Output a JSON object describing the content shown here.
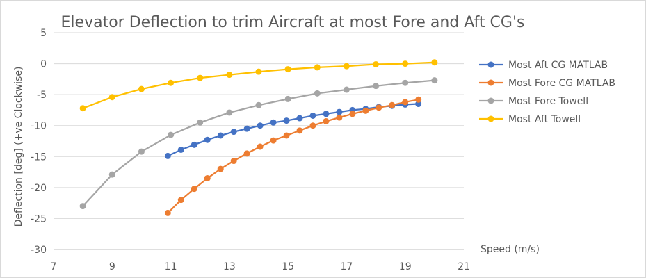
{
  "chart_data": {
    "type": "scatter",
    "title": "Elevator Deflection to trim Aircraft at most Fore and Aft CG's",
    "xlabel": "Speed (m/s)",
    "ylabel": "Deflection [deg] (+ve Clockwise)",
    "xlim": [
      7,
      21
    ],
    "ylim": [
      -30,
      5
    ],
    "xticks": [
      7,
      9,
      11,
      13,
      15,
      17,
      19,
      21
    ],
    "yticks": [
      5,
      0,
      -5,
      -10,
      -15,
      -20,
      -25,
      -30
    ],
    "grid": "horizontal",
    "legend_position": "right",
    "series": [
      {
        "name": "Most Aft CG MATLAB",
        "color": "#4472C4",
        "x": [
          10.9,
          11.35,
          11.8,
          12.25,
          12.7,
          13.15,
          13.6,
          14.05,
          14.5,
          14.95,
          15.4,
          15.85,
          16.3,
          16.75,
          17.2,
          17.65,
          18.1,
          18.55,
          19.0,
          19.45
        ],
        "y": [
          -14.9,
          -13.9,
          -13.1,
          -12.3,
          -11.6,
          -11.0,
          -10.5,
          -10.0,
          -9.5,
          -9.2,
          -8.8,
          -8.4,
          -8.1,
          -7.8,
          -7.5,
          -7.3,
          -7.0,
          -6.8,
          -6.6,
          -6.5
        ]
      },
      {
        "name": "Most Fore CG MATLAB",
        "color": "#ED7D31",
        "x": [
          10.9,
          11.35,
          11.8,
          12.25,
          12.7,
          13.15,
          13.6,
          14.05,
          14.5,
          14.95,
          15.4,
          15.85,
          16.3,
          16.75,
          17.2,
          17.65,
          18.1,
          18.55,
          19.0,
          19.45
        ],
        "y": [
          -24.1,
          -22.0,
          -20.2,
          -18.5,
          -17.0,
          -15.7,
          -14.5,
          -13.4,
          -12.4,
          -11.6,
          -10.8,
          -10.0,
          -9.3,
          -8.7,
          -8.1,
          -7.6,
          -7.1,
          -6.7,
          -6.2,
          -5.8
        ]
      },
      {
        "name": "Most Fore Towell",
        "color": "#A5A5A5",
        "x": [
          8,
          9,
          10,
          11,
          12,
          13,
          14,
          15,
          16,
          17,
          18,
          19,
          20
        ],
        "y": [
          -23.0,
          -17.9,
          -14.2,
          -11.5,
          -9.5,
          -7.9,
          -6.7,
          -5.7,
          -4.8,
          -4.2,
          -3.6,
          -3.1,
          -2.7
        ]
      },
      {
        "name": "Most Aft Towell",
        "color": "#FFC000",
        "x": [
          8,
          9,
          10,
          11,
          12,
          13,
          14,
          15,
          16,
          17,
          18,
          19,
          20
        ],
        "y": [
          -7.2,
          -5.4,
          -4.1,
          -3.1,
          -2.3,
          -1.8,
          -1.3,
          -0.9,
          -0.6,
          -0.4,
          -0.1,
          0.0,
          0.2
        ]
      }
    ]
  }
}
